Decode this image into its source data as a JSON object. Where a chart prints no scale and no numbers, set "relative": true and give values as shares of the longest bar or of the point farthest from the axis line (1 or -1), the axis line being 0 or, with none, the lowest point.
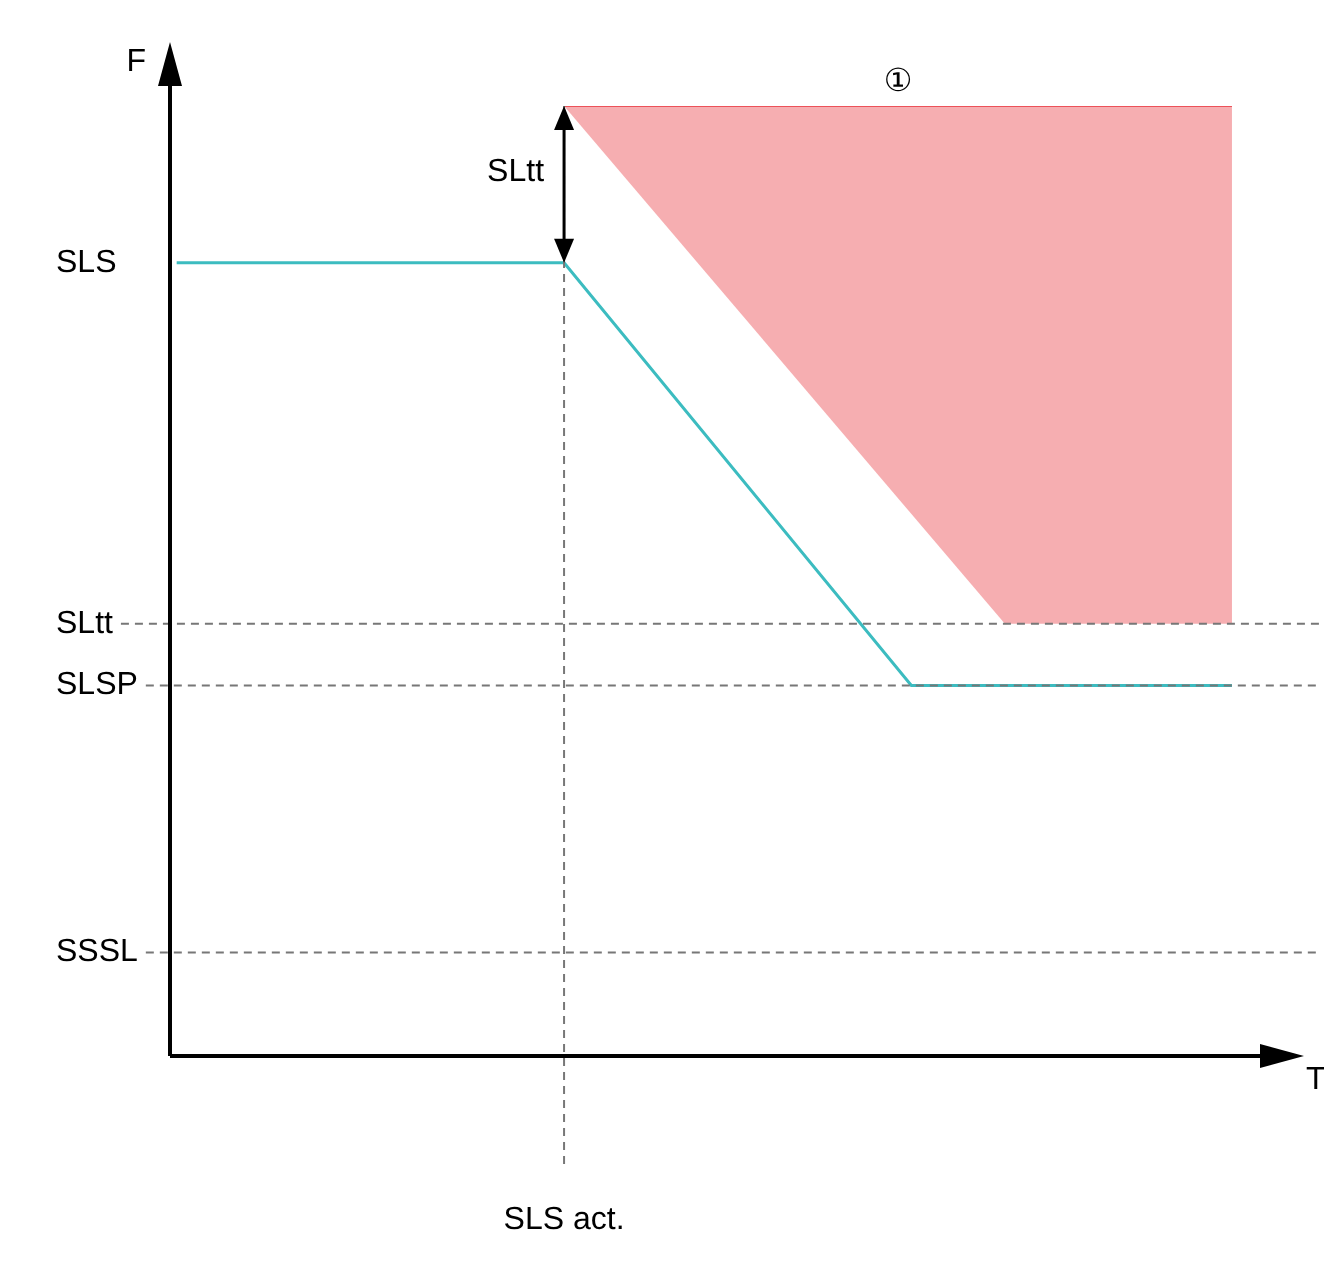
{
  "chart_data": {
    "type": "line",
    "relative": true,
    "xlabel": "T",
    "ylabel": "F",
    "legend": false,
    "categories": [
      null,
      null,
      null,
      null,
      null,
      null,
      null,
      null,
      null,
      null,
      null,
      null,
      null,
      null,
      null,
      null,
      null,
      null,
      null,
      null,
      null,
      null,
      null,
      null,
      null,
      null,
      null,
      null,
      null,
      null,
      null,
      null,
      null,
      null,
      null,
      null,
      null,
      null,
      null,
      null,
      null,
      null,
      null,
      null,
      null,
      null,
      null,
      null,
      null,
      null,
      null,
      null,
      null,
      null,
      null,
      null,
      null,
      null,
      null,
      null,
      null,
      null,
      null,
      null,
      null,
      null,
      null,
      null,
      null,
      null,
      null,
      null,
      null,
      null,
      null,
      null,
      null,
      null,
      null,
      null,
      null
    ],
    "series": [
      {
        "color": "#3cbcc0",
        "values": [
          0.835,
          null,
          null,
          null,
          null,
          null,
          null,
          null,
          null,
          null,
          null,
          null,
          null,
          null,
          null,
          null,
          null,
          null,
          null,
          null,
          null,
          null,
          null,
          null,
          null,
          null,
          null,
          null,
          null,
          0.835,
          null,
          null,
          null,
          null,
          null,
          null,
          null,
          null,
          null,
          null,
          null,
          null,
          null,
          null,
          null,
          null,
          null,
          null,
          null,
          null,
          null,
          null,
          null,
          null,
          null,
          0.39,
          null,
          null,
          null,
          null,
          null,
          null,
          null,
          null,
          null,
          null,
          null,
          null,
          null,
          null,
          null,
          null,
          null,
          null,
          null,
          null,
          null,
          null,
          null,
          0.39,
          null
        ]
      },
      {
        "color": "#e8343c",
        "values": [
          null,
          null,
          null,
          null,
          null,
          null,
          null,
          null,
          null,
          null,
          null,
          null,
          null,
          null,
          null,
          null,
          null,
          null,
          null,
          null,
          null,
          null,
          null,
          null,
          null,
          null,
          null,
          null,
          null,
          1,
          null,
          null,
          null,
          null,
          null,
          null,
          null,
          null,
          null,
          null,
          null,
          null,
          null,
          null,
          null,
          null,
          null,
          null,
          null,
          null,
          null,
          null,
          null,
          null,
          null,
          null,
          null,
          null,
          null,
          null,
          null,
          null,
          1,
          null,
          null,
          null,
          null,
          null,
          null,
          null,
          null,
          null,
          null,
          null,
          null,
          null,
          null,
          null,
          null,
          1,
          null
        ],
        "lower": [
          null,
          null,
          null,
          null,
          null,
          null,
          null,
          null,
          null,
          null,
          null,
          null,
          null,
          null,
          null,
          null,
          null,
          null,
          null,
          null,
          null,
          null,
          null,
          null,
          null,
          null,
          null,
          null,
          null,
          1,
          null,
          null,
          null,
          null,
          null,
          null,
          null,
          null,
          null,
          null,
          null,
          null,
          null,
          null,
          null,
          null,
          null,
          null,
          null,
          null,
          null,
          null,
          null,
          null,
          null,
          null,
          null,
          null,
          null,
          null,
          null,
          null,
          0.455,
          null,
          null,
          null,
          null,
          null,
          null,
          null,
          null,
          null,
          null,
          null,
          null,
          null,
          null,
          null,
          null,
          0.455,
          null
        ],
        "upper": [
          null,
          null,
          null,
          null,
          null,
          null,
          null,
          null,
          null,
          null,
          null,
          null,
          null,
          null,
          null,
          null,
          null,
          null,
          null,
          null,
          null,
          null,
          null,
          null,
          null,
          null,
          null,
          null,
          null,
          1,
          null,
          null,
          null,
          null,
          null,
          null,
          null,
          null,
          null,
          null,
          null,
          null,
          null,
          null,
          null,
          null,
          null,
          null,
          null,
          null,
          null,
          null,
          null,
          null,
          null,
          null,
          null,
          null,
          null,
          null,
          null,
          null,
          1,
          null,
          null,
          null,
          null,
          null,
          null,
          null,
          null,
          null,
          null,
          null,
          null,
          null,
          null,
          null,
          null,
          1,
          null
        ]
      }
    ],
    "ref_lines": [
      {
        "axis": "y",
        "value": 0.455,
        "label": "SLtt",
        "line_style": "dashed"
      },
      {
        "axis": "y",
        "value": 0.39,
        "label": "SLSP",
        "line_style": "dashed"
      },
      {
        "axis": "y",
        "value": 0.109,
        "label": "SSSL",
        "line_style": "dashed"
      },
      {
        "axis": "x",
        "label": "SLS act.",
        "line_style": "dashed"
      }
    ],
    "annotations": [
      "SLS",
      "SLtt",
      "①"
    ]
  }
}
